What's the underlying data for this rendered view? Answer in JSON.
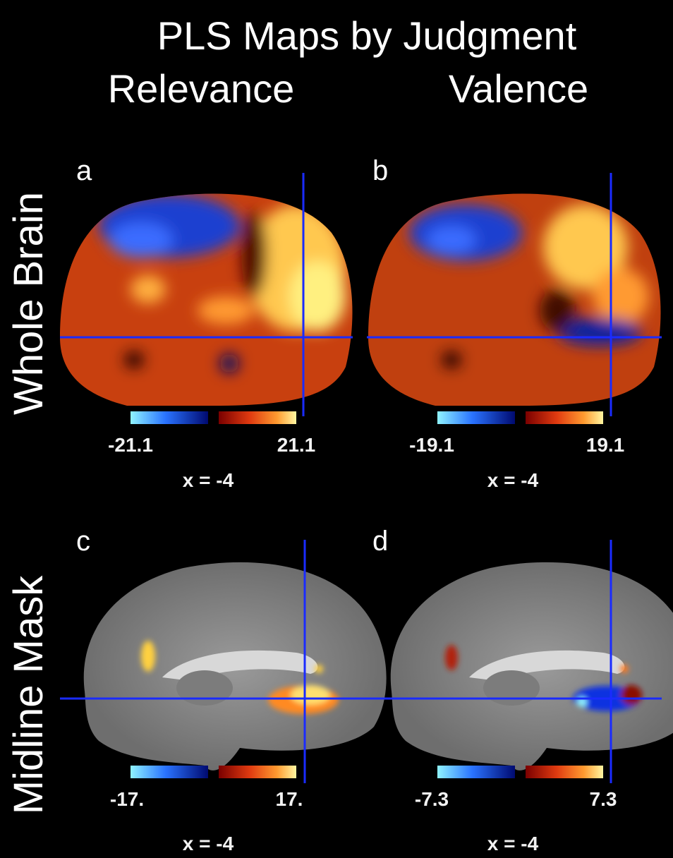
{
  "title": "PLS Maps by Judgment",
  "columns": [
    "Relevance",
    "Valence"
  ],
  "rows": [
    "Whole Brain",
    "Midline Mask"
  ],
  "panels": [
    {
      "letter": "a",
      "min_label": "-21.1",
      "max_label": "21.1",
      "coord": "x = -4"
    },
    {
      "letter": "b",
      "min_label": "-19.1",
      "max_label": "19.1",
      "coord": "x = -4"
    },
    {
      "letter": "c",
      "min_label": "-17.",
      "max_label": "17.",
      "coord": "x = -4"
    },
    {
      "letter": "d",
      "min_label": "-7.3",
      "max_label": "7.3",
      "coord": "x = -4"
    }
  ]
}
